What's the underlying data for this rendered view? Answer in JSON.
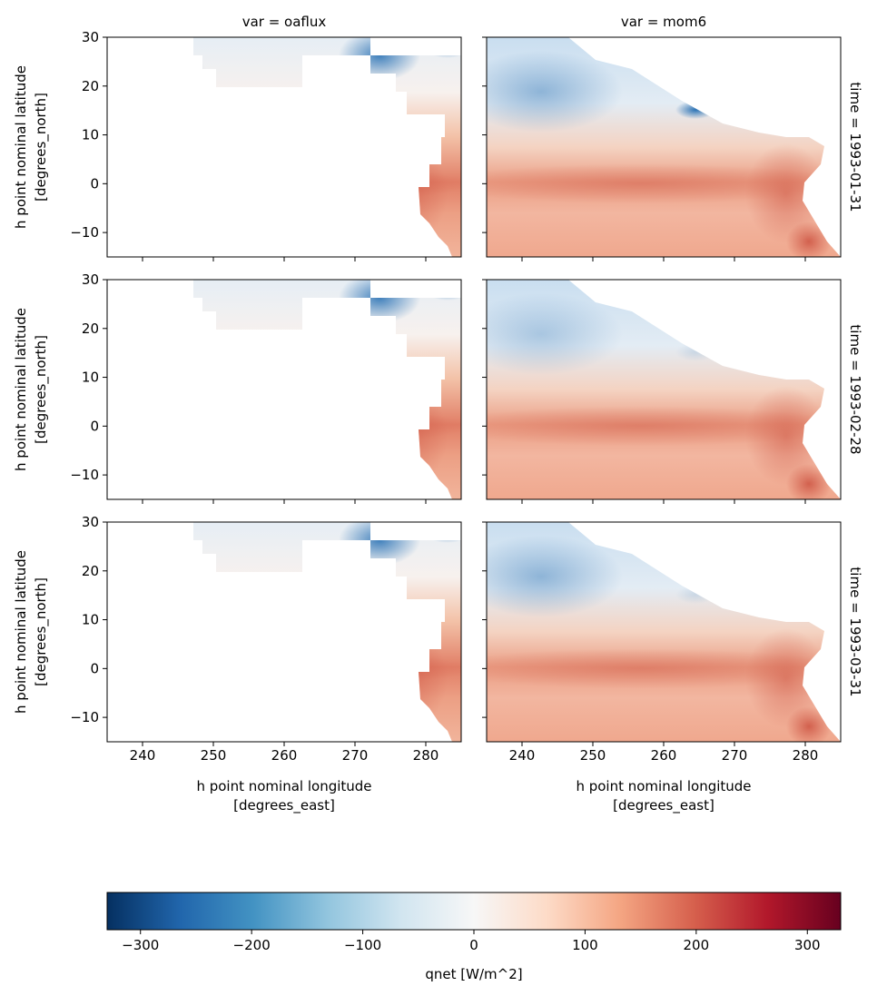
{
  "chart_data": {
    "type": "heatmap",
    "layout": "facet grid, 3 rows x 2 columns, shared axes",
    "col_titles": [
      "var = oaflux",
      "var = mom6"
    ],
    "row_titles": [
      "time = 1993-01-31",
      "time = 1993-02-28",
      "time = 1993-03-31"
    ],
    "xlabel": [
      "h point nominal longitude",
      "[degrees_east]"
    ],
    "ylabel": [
      "h point nominal latitude",
      "[degrees_north]"
    ],
    "xlim": [
      235,
      285
    ],
    "ylim": [
      -15,
      30
    ],
    "xticks": [
      240,
      250,
      260,
      270,
      280
    ],
    "yticks": [
      -10,
      0,
      10,
      20,
      30
    ],
    "colorbar": {
      "label": "qnet [W/m^2]",
      "colormap": "RdBu_r",
      "vmin": -330,
      "vmax": 330,
      "ticks": [
        -300,
        -200,
        -100,
        0,
        100,
        200,
        300
      ],
      "tick_labels": [
        "−300",
        "−200",
        "−100",
        "0",
        "100",
        "200",
        "300"
      ],
      "placement": "bottom, horizontal"
    },
    "description_values": {
      "equatorial_band_qnet_approx": 150,
      "northern_subtropics_qnet_approx": -60,
      "northeast_corner_min_approx": -300
    }
  },
  "colors": {
    "low": "#053061",
    "mid": "#f7f7f7",
    "high": "#67001f"
  }
}
